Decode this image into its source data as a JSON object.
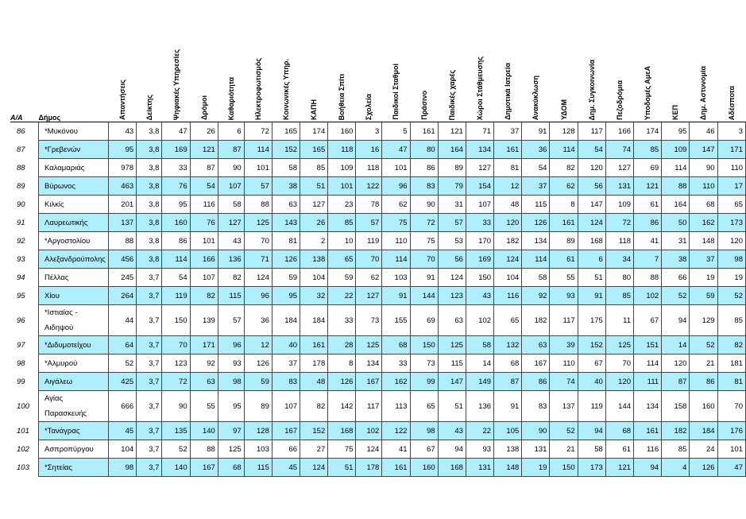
{
  "headers": {
    "aa": "Α/Α",
    "name": "Δήμος",
    "cols": [
      "Απαντήσεις",
      "Δείκτης",
      "Ψηφιακές Υπηρεσίες",
      "Δρόμοι",
      "Καθαριότητα",
      "Ηλεκτροφωτισμός",
      "Κοινωνικές Υπηρ.",
      "ΚΑΠΗ",
      "Βοήθεια Σπίτι",
      "Σχολεία",
      "Παιδικοί Σταθμοί",
      "Πράσινο",
      "Παιδικές χαρές",
      "Χώροι Στάθμευσης",
      "Δημοτικά Ιατρεία",
      "Ανακύκλωση",
      "ΥΔΟΜ",
      "Δημ. Συγκοινωνία",
      "Πεζοδρόμια",
      "Υποδομές ΑμεΑ",
      "ΚΕΠ",
      "Δημ. Αστυνομία",
      "Αδέσποτα"
    ]
  },
  "rows": [
    {
      "aa": "86",
      "name": "*Μυκόνου",
      "vals": [
        "43",
        "3,8",
        "47",
        "26",
        "6",
        "72",
        "165",
        "174",
        "160",
        "3",
        "5",
        "161",
        "121",
        "71",
        "37",
        "91",
        "128",
        "117",
        "166",
        "174",
        "95",
        "46",
        "3"
      ]
    },
    {
      "aa": "87",
      "name": "*Γρεβενών",
      "vals": [
        "95",
        "3,8",
        "169",
        "121",
        "87",
        "114",
        "152",
        "165",
        "118",
        "16",
        "47",
        "80",
        "164",
        "134",
        "161",
        "36",
        "114",
        "54",
        "74",
        "85",
        "109",
        "147",
        "171"
      ]
    },
    {
      "aa": "88",
      "name": "Καλαμαριάς",
      "vals": [
        "978",
        "3,8",
        "33",
        "87",
        "90",
        "101",
        "58",
        "85",
        "109",
        "118",
        "101",
        "86",
        "89",
        "127",
        "81",
        "54",
        "82",
        "120",
        "127",
        "69",
        "114",
        "90",
        "110"
      ]
    },
    {
      "aa": "89",
      "name": "Βύρωνος",
      "vals": [
        "463",
        "3,8",
        "76",
        "54",
        "107",
        "57",
        "38",
        "51",
        "101",
        "122",
        "96",
        "83",
        "79",
        "154",
        "12",
        "37",
        "62",
        "56",
        "131",
        "121",
        "88",
        "110",
        "17"
      ]
    },
    {
      "aa": "90",
      "name": "Κιλκίς",
      "vals": [
        "201",
        "3,8",
        "95",
        "116",
        "58",
        "88",
        "63",
        "127",
        "23",
        "78",
        "62",
        "90",
        "31",
        "107",
        "48",
        "115",
        "8",
        "147",
        "109",
        "61",
        "164",
        "68",
        "65"
      ]
    },
    {
      "aa": "91",
      "name": "Λαυρεωτικής",
      "vals": [
        "137",
        "3,8",
        "160",
        "76",
        "127",
        "125",
        "143",
        "26",
        "85",
        "57",
        "75",
        "72",
        "57",
        "33",
        "120",
        "126",
        "161",
        "124",
        "72",
        "86",
        "50",
        "162",
        "173"
      ]
    },
    {
      "aa": "92",
      "name": "*Αργοστολίου",
      "vals": [
        "88",
        "3,8",
        "86",
        "101",
        "43",
        "70",
        "81",
        "2",
        "10",
        "119",
        "110",
        "75",
        "53",
        "170",
        "182",
        "134",
        "89",
        "168",
        "118",
        "41",
        "31",
        "148",
        "120"
      ]
    },
    {
      "aa": "93",
      "name": "Αλεξανδρούπολης",
      "vals": [
        "456",
        "3,8",
        "114",
        "166",
        "136",
        "71",
        "126",
        "138",
        "65",
        "70",
        "114",
        "70",
        "56",
        "169",
        "124",
        "114",
        "61",
        "6",
        "34",
        "7",
        "38",
        "37",
        "98"
      ]
    },
    {
      "aa": "94",
      "name": "Πέλλας",
      "vals": [
        "245",
        "3,7",
        "54",
        "107",
        "82",
        "124",
        "59",
        "104",
        "59",
        "62",
        "103",
        "91",
        "124",
        "150",
        "104",
        "58",
        "55",
        "51",
        "80",
        "88",
        "66",
        "19",
        "19"
      ]
    },
    {
      "aa": "95",
      "name": "Χίου",
      "vals": [
        "264",
        "3,7",
        "119",
        "82",
        "115",
        "96",
        "95",
        "32",
        "22",
        "127",
        "91",
        "144",
        "123",
        "43",
        "116",
        "92",
        "93",
        "91",
        "85",
        "102",
        "52",
        "59",
        "52"
      ]
    },
    {
      "aa": "96",
      "name": "*Ιστιαίας - Αιδηψού",
      "tall": true,
      "vals": [
        "44",
        "3,7",
        "150",
        "139",
        "57",
        "36",
        "184",
        "184",
        "33",
        "73",
        "155",
        "69",
        "63",
        "102",
        "65",
        "182",
        "117",
        "175",
        "11",
        "67",
        "94",
        "129",
        "85"
      ]
    },
    {
      "aa": "97",
      "name": "*Διδυμοτείχου",
      "vals": [
        "64",
        "3,7",
        "70",
        "171",
        "96",
        "12",
        "40",
        "161",
        "28",
        "125",
        "68",
        "150",
        "125",
        "58",
        "132",
        "63",
        "39",
        "152",
        "125",
        "151",
        "14",
        "52",
        "82"
      ]
    },
    {
      "aa": "98",
      "name": "*Αλμυρού",
      "vals": [
        "52",
        "3,7",
        "123",
        "92",
        "93",
        "126",
        "37",
        "178",
        "8",
        "134",
        "33",
        "73",
        "115",
        "14",
        "68",
        "167",
        "110",
        "67",
        "70",
        "114",
        "120",
        "21",
        "181"
      ]
    },
    {
      "aa": "99",
      "name": "Αιγάλεω",
      "vals": [
        "425",
        "3,7",
        "72",
        "63",
        "98",
        "59",
        "83",
        "48",
        "126",
        "167",
        "162",
        "99",
        "147",
        "149",
        "87",
        "86",
        "74",
        "40",
        "120",
        "111",
        "87",
        "86",
        "81"
      ]
    },
    {
      "aa": "100",
      "name": "Αγίας Παρασκευής",
      "tall": true,
      "vals": [
        "666",
        "3,7",
        "90",
        "55",
        "95",
        "89",
        "107",
        "82",
        "142",
        "117",
        "113",
        "65",
        "51",
        "136",
        "91",
        "83",
        "137",
        "119",
        "144",
        "134",
        "158",
        "160",
        "70"
      ]
    },
    {
      "aa": "101",
      "name": "*Τανάγρας",
      "vals": [
        "45",
        "3,7",
        "135",
        "140",
        "97",
        "128",
        "167",
        "152",
        "168",
        "102",
        "122",
        "98",
        "43",
        "22",
        "105",
        "90",
        "52",
        "94",
        "68",
        "161",
        "182",
        "184",
        "176"
      ]
    },
    {
      "aa": "102",
      "name": "Ασπροπύργου",
      "vals": [
        "104",
        "3,7",
        "52",
        "88",
        "125",
        "103",
        "66",
        "27",
        "75",
        "124",
        "41",
        "67",
        "94",
        "93",
        "138",
        "131",
        "21",
        "58",
        "61",
        "116",
        "85",
        "24",
        "101"
      ]
    },
    {
      "aa": "103",
      "name": "*Σητείας",
      "vals": [
        "98",
        "3,7",
        "140",
        "167",
        "68",
        "115",
        "45",
        "124",
        "51",
        "178",
        "161",
        "160",
        "168",
        "131",
        "148",
        "19",
        "150",
        "173",
        "121",
        "94",
        "4",
        "126",
        "47"
      ]
    }
  ]
}
